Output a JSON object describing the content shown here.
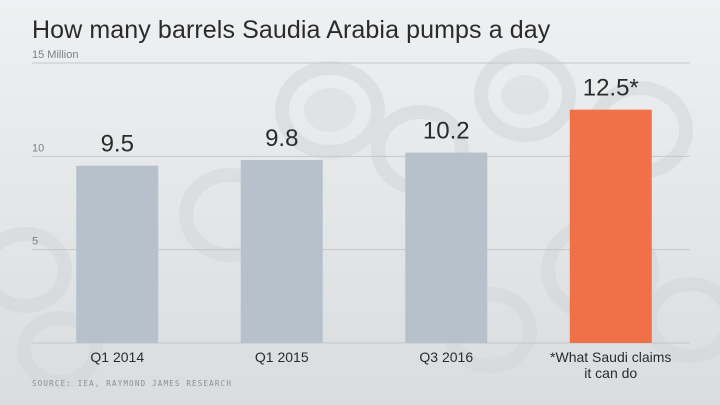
{
  "title": "How many barrels Saudia Arabia pumps a day",
  "source": "SOURCE: IEA, RAYMOND JAMES RESEARCH",
  "colors": {
    "actual_bar": "#b6c1cb",
    "claim_bar": "#f07048",
    "text": "#2b2b2b",
    "axis_label": "#7c8185",
    "gridline": "#c4c7ca"
  },
  "chart_data": {
    "type": "bar",
    "title": "How many barrels Saudia Arabia pumps a day",
    "xlabel": "",
    "ylabel": "",
    "ylim": [
      0,
      15
    ],
    "yticks": [
      {
        "value": 15,
        "label": "15 Million"
      },
      {
        "value": 10,
        "label": "10"
      },
      {
        "value": 5,
        "label": "5"
      }
    ],
    "grid": true,
    "legend": "none",
    "categories": [
      [
        "Q1 2014"
      ],
      [
        "Q1 2015"
      ],
      [
        "Q3 2016"
      ],
      [
        "*What Saudi claims",
        "it can do"
      ]
    ],
    "values": [
      9.5,
      9.8,
      10.2,
      12.5
    ],
    "value_labels": [
      "9.5",
      "9.8",
      "10.2",
      "12.5*"
    ],
    "highlight_index": 3
  }
}
